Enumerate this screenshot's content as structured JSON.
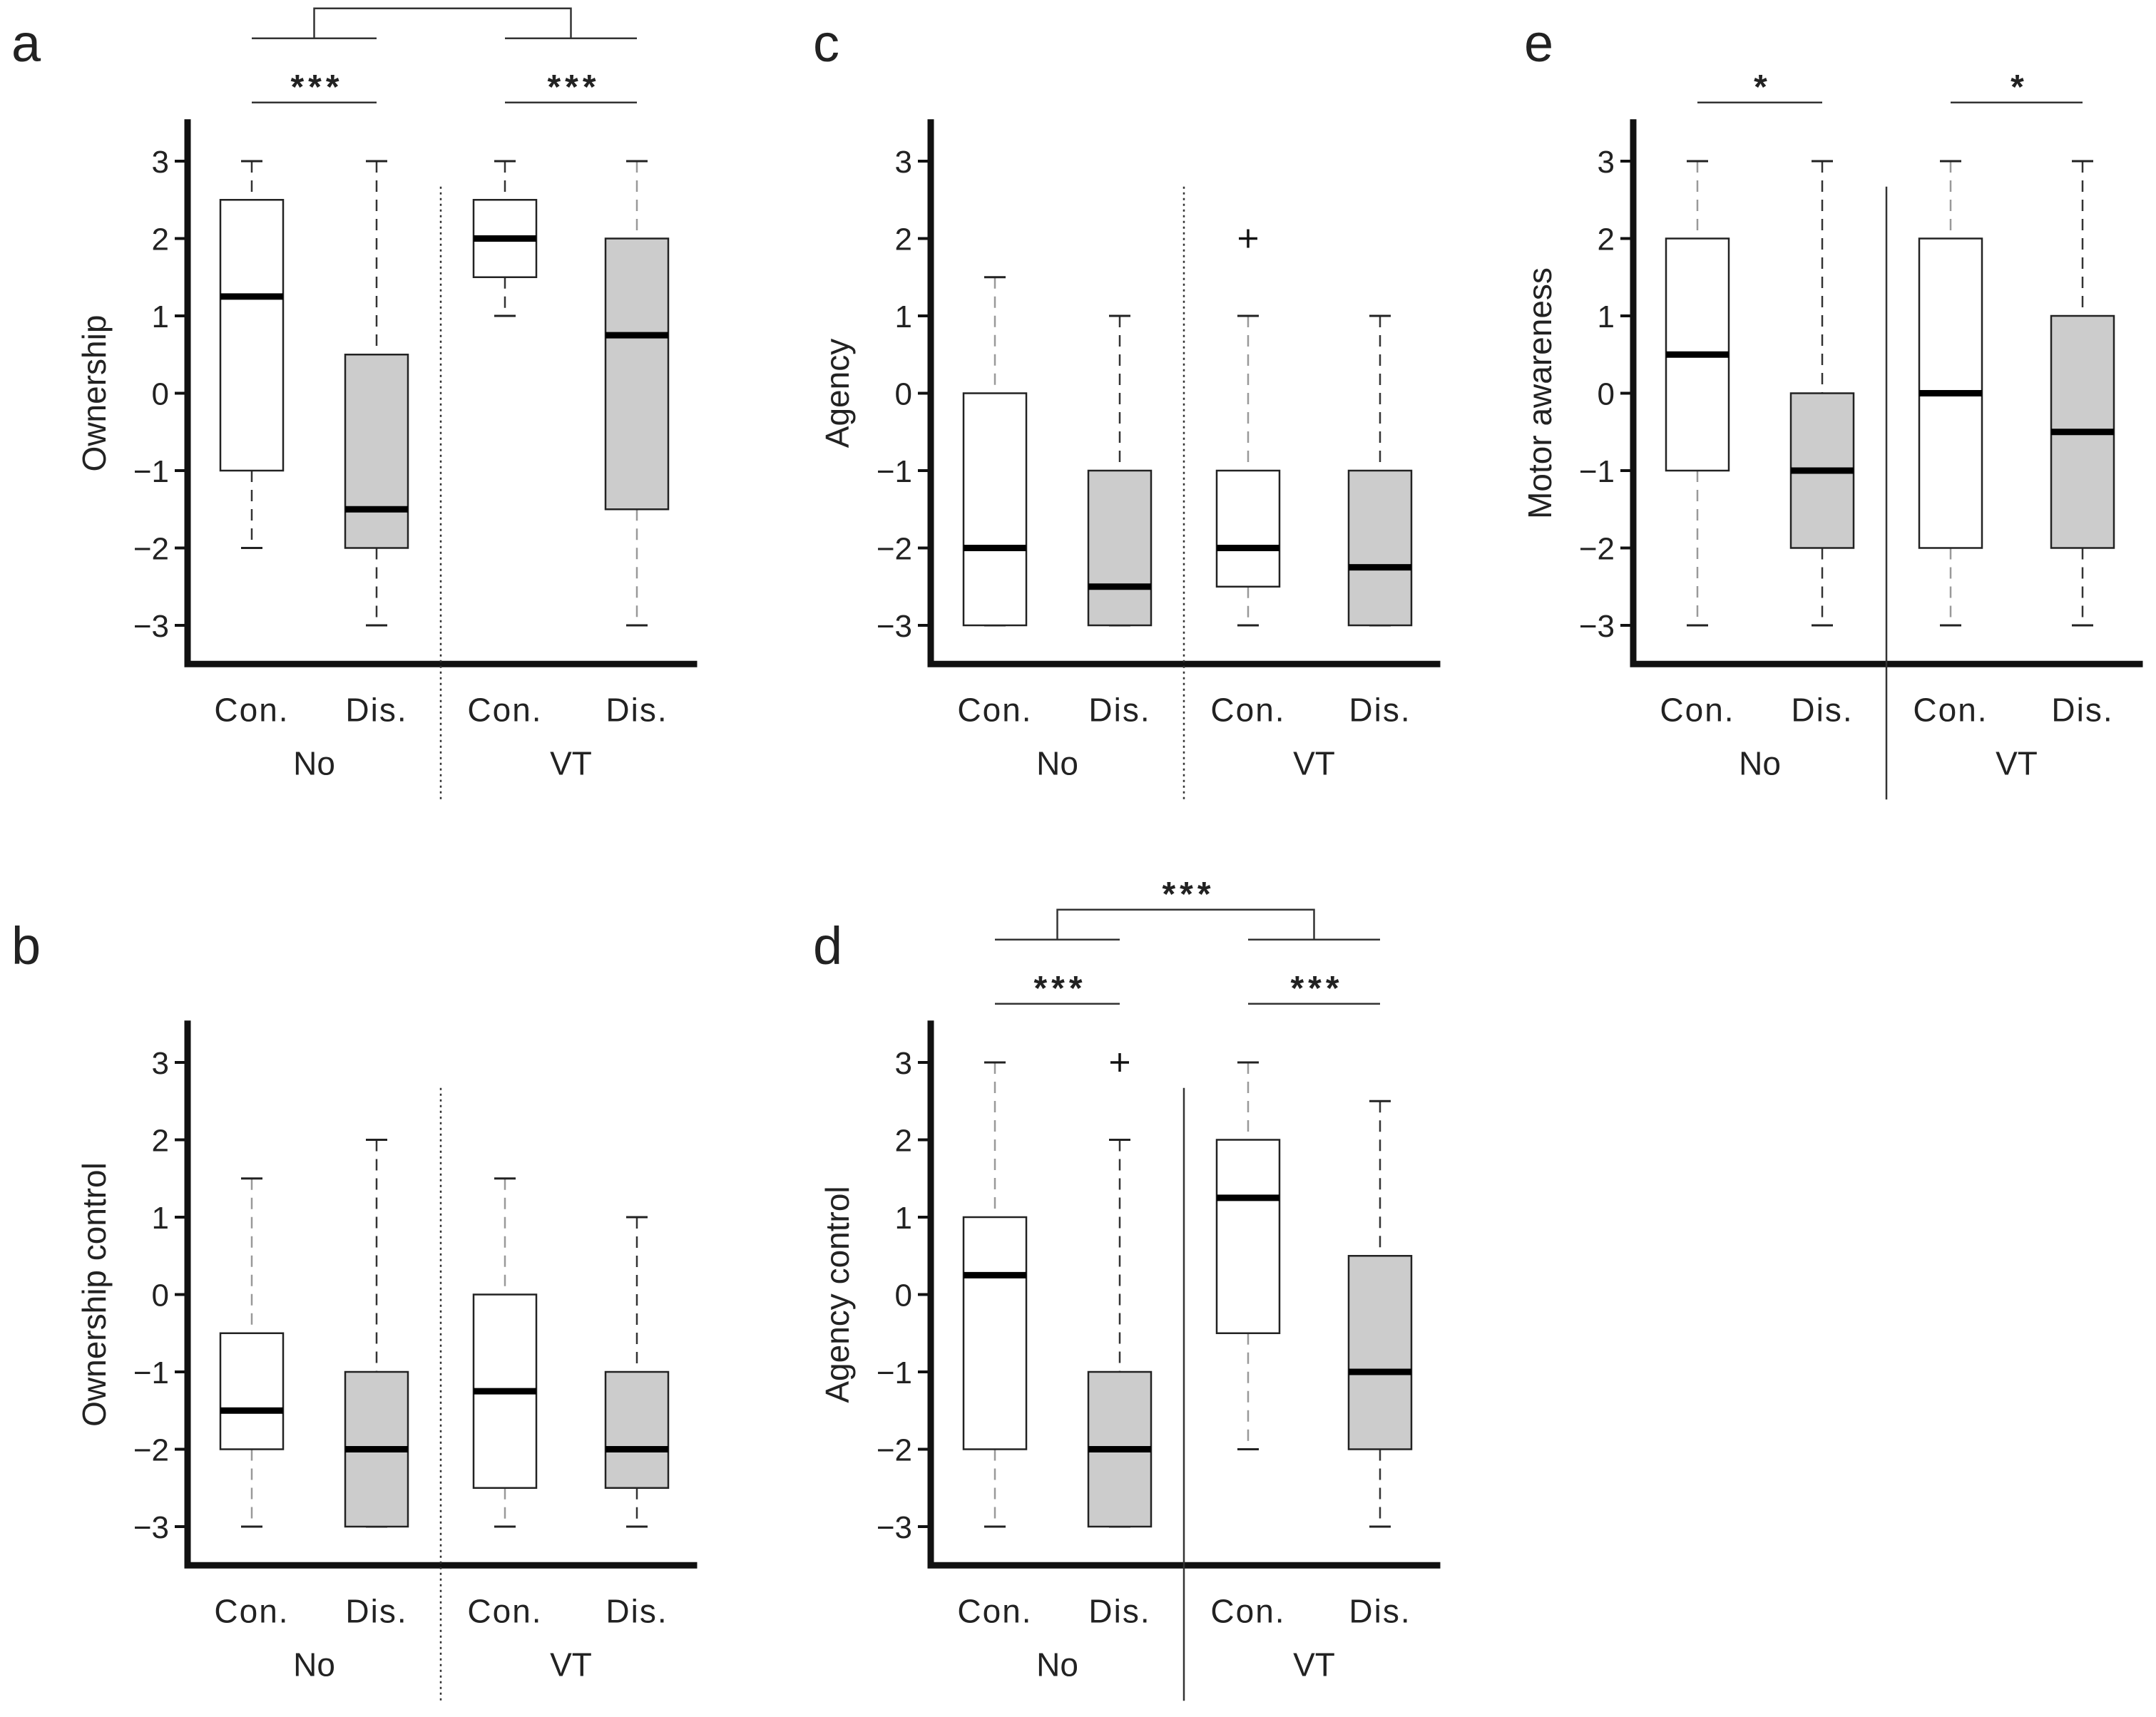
{
  "chart_data": [
    {
      "id": "a",
      "type": "box",
      "panel_label": "a",
      "ylabel": "Ownership",
      "ylim": [
        -3.5,
        3.5
      ],
      "yticks": [
        3,
        2,
        1,
        0,
        -1,
        -2,
        -3
      ],
      "ytick_labels": [
        "3",
        "2",
        "1",
        "0",
        "−1",
        "−2",
        "−3"
      ],
      "groups": [
        "No",
        "VT"
      ],
      "categories": [
        "Con.",
        "Dis.",
        "Con.",
        "Dis."
      ],
      "separator": "dotted",
      "boxes": [
        {
          "group": "No",
          "category": "Con.",
          "fill": "#ffffff",
          "min": -2,
          "q1": -1,
          "median": 1.25,
          "q3": 2.5,
          "max": 3,
          "outliers": []
        },
        {
          "group": "No",
          "category": "Dis.",
          "fill": "#cccccc",
          "min": -3,
          "q1": -2,
          "median": -1.5,
          "q3": 0.5,
          "max": 3,
          "outliers": []
        },
        {
          "group": "VT",
          "category": "Con.",
          "fill": "#ffffff",
          "min": 1,
          "q1": 1.5,
          "median": 2,
          "q3": 2.5,
          "max": 3,
          "outliers": []
        },
        {
          "group": "VT",
          "category": "Dis.",
          "fill": "#cccccc",
          "min": -3,
          "q1": -1.5,
          "median": 0.75,
          "q3": 2,
          "max": 3,
          "outliers": []
        }
      ],
      "significance": [
        {
          "between": [
            "No Con.",
            "No Dis."
          ],
          "label": "***"
        },
        {
          "between": [
            "VT Con.",
            "VT Dis."
          ],
          "label": "***"
        },
        {
          "between": [
            "No",
            "VT"
          ],
          "label": "**"
        }
      ]
    },
    {
      "id": "b",
      "type": "box",
      "panel_label": "b",
      "ylabel": "Ownership control",
      "ylim": [
        -3.5,
        3.5
      ],
      "yticks": [
        3,
        2,
        1,
        0,
        -1,
        -2,
        -3
      ],
      "ytick_labels": [
        "3",
        "2",
        "1",
        "0",
        "−1",
        "−2",
        "−3"
      ],
      "groups": [
        "No",
        "VT"
      ],
      "categories": [
        "Con.",
        "Dis.",
        "Con.",
        "Dis."
      ],
      "separator": "dotted",
      "boxes": [
        {
          "group": "No",
          "category": "Con.",
          "fill": "#ffffff",
          "min": -3,
          "q1": -2,
          "median": -1.5,
          "q3": -0.5,
          "max": 1.5,
          "outliers": []
        },
        {
          "group": "No",
          "category": "Dis.",
          "fill": "#cccccc",
          "min": -3,
          "q1": -3,
          "median": -2,
          "q3": -1,
          "max": 2,
          "outliers": []
        },
        {
          "group": "VT",
          "category": "Con.",
          "fill": "#ffffff",
          "min": -3,
          "q1": -2.5,
          "median": -1.25,
          "q3": 0,
          "max": 1.5,
          "outliers": []
        },
        {
          "group": "VT",
          "category": "Dis.",
          "fill": "#cccccc",
          "min": -3,
          "q1": -2.5,
          "median": -2,
          "q3": -1,
          "max": 1,
          "outliers": []
        }
      ],
      "significance": []
    },
    {
      "id": "c",
      "type": "box",
      "panel_label": "c",
      "ylabel": "Agency",
      "ylim": [
        -3.5,
        3.5
      ],
      "yticks": [
        3,
        2,
        1,
        0,
        -1,
        -2,
        -3
      ],
      "ytick_labels": [
        "3",
        "2",
        "1",
        "0",
        "−1",
        "−2",
        "−3"
      ],
      "groups": [
        "No",
        "VT"
      ],
      "categories": [
        "Con.",
        "Dis.",
        "Con.",
        "Dis."
      ],
      "separator": "dotted",
      "boxes": [
        {
          "group": "No",
          "category": "Con.",
          "fill": "#ffffff",
          "min": -3,
          "q1": -3,
          "median": -2,
          "q3": 0,
          "max": 1.5,
          "outliers": []
        },
        {
          "group": "No",
          "category": "Dis.",
          "fill": "#cccccc",
          "min": -3,
          "q1": -3,
          "median": -2.5,
          "q3": -1,
          "max": 1,
          "outliers": []
        },
        {
          "group": "VT",
          "category": "Con.",
          "fill": "#ffffff",
          "min": -3,
          "q1": -2.5,
          "median": -2,
          "q3": -1,
          "max": 1,
          "outliers": [
            2
          ]
        },
        {
          "group": "VT",
          "category": "Dis.",
          "fill": "#cccccc",
          "min": -3,
          "q1": -3,
          "median": -2.25,
          "q3": -1,
          "max": 1,
          "outliers": []
        }
      ],
      "significance": []
    },
    {
      "id": "d",
      "type": "box",
      "panel_label": "d",
      "ylabel": "Agency control",
      "ylim": [
        -3.5,
        3.5
      ],
      "yticks": [
        3,
        2,
        1,
        0,
        -1,
        -2,
        -3
      ],
      "ytick_labels": [
        "3",
        "2",
        "1",
        "0",
        "−1",
        "−2",
        "−3"
      ],
      "groups": [
        "No",
        "VT"
      ],
      "categories": [
        "Con.",
        "Dis.",
        "Con.",
        "Dis."
      ],
      "separator": "solid",
      "boxes": [
        {
          "group": "No",
          "category": "Con.",
          "fill": "#ffffff",
          "min": -3,
          "q1": -2,
          "median": 0.25,
          "q3": 1,
          "max": 3,
          "outliers": []
        },
        {
          "group": "No",
          "category": "Dis.",
          "fill": "#cccccc",
          "min": -3,
          "q1": -3,
          "median": -2,
          "q3": -1,
          "max": 2,
          "outliers": [
            3
          ]
        },
        {
          "group": "VT",
          "category": "Con.",
          "fill": "#ffffff",
          "min": -2,
          "q1": -0.5,
          "median": 1.25,
          "q3": 2,
          "max": 3,
          "outliers": []
        },
        {
          "group": "VT",
          "category": "Dis.",
          "fill": "#cccccc",
          "min": -3,
          "q1": -2,
          "median": -1,
          "q3": 0.5,
          "max": 2.5,
          "outliers": []
        }
      ],
      "significance": [
        {
          "between": [
            "No Con.",
            "No Dis."
          ],
          "label": "***"
        },
        {
          "between": [
            "VT Con.",
            "VT Dis."
          ],
          "label": "***"
        },
        {
          "between": [
            "No",
            "VT"
          ],
          "label": "***"
        }
      ]
    },
    {
      "id": "e",
      "type": "box",
      "panel_label": "e",
      "ylabel": "Motor awareness",
      "ylim": [
        -3.5,
        3.5
      ],
      "yticks": [
        3,
        2,
        1,
        0,
        -1,
        -2,
        -3
      ],
      "ytick_labels": [
        "3",
        "2",
        "1",
        "0",
        "−1",
        "−2",
        "−3"
      ],
      "groups": [
        "No",
        "VT"
      ],
      "categories": [
        "Con.",
        "Dis.",
        "Con.",
        "Dis."
      ],
      "separator": "solid",
      "boxes": [
        {
          "group": "No",
          "category": "Con.",
          "fill": "#ffffff",
          "min": -3,
          "q1": -1,
          "median": 0.5,
          "q3": 2,
          "max": 3,
          "outliers": []
        },
        {
          "group": "No",
          "category": "Dis.",
          "fill": "#cccccc",
          "min": -3,
          "q1": -2,
          "median": -1,
          "q3": 0,
          "max": 3,
          "outliers": []
        },
        {
          "group": "VT",
          "category": "Con.",
          "fill": "#ffffff",
          "min": -3,
          "q1": -2,
          "median": 0,
          "q3": 2,
          "max": 3,
          "outliers": []
        },
        {
          "group": "VT",
          "category": "Dis.",
          "fill": "#cccccc",
          "min": -3,
          "q1": -2,
          "median": -0.5,
          "q3": 1,
          "max": 3,
          "outliers": []
        }
      ],
      "significance": [
        {
          "between": [
            "No Con.",
            "No Dis."
          ],
          "label": "*"
        },
        {
          "between": [
            "VT Con.",
            "VT Dis."
          ],
          "label": "*"
        }
      ]
    }
  ]
}
